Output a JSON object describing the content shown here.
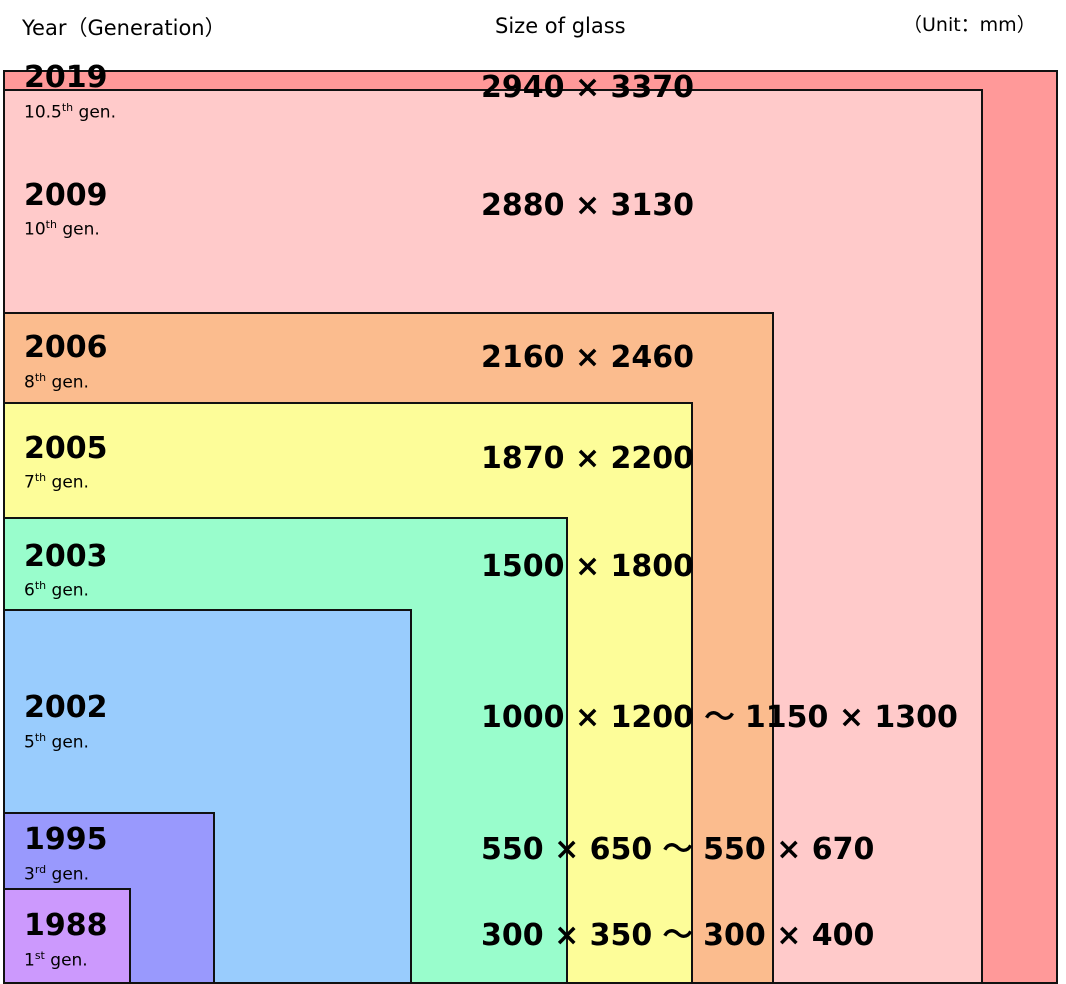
{
  "header": {
    "year_col": "Year（Generation）",
    "size_col": "Size of glass",
    "unit": "（Unit：mm）"
  },
  "generations": [
    {
      "year": "2019",
      "gen_num": "10.5",
      "gen_suffix": "th",
      "gen_word": " gen.",
      "size": "2940 × 3370",
      "color": "#ff9999"
    },
    {
      "year": "2009",
      "gen_num": "10",
      "gen_suffix": "th",
      "gen_word": " gen.",
      "size": "2880 × 3130",
      "color": "#ffcaca"
    },
    {
      "year": "2006",
      "gen_num": "8",
      "gen_suffix": "th",
      "gen_word": " gen.",
      "size": "2160 × 2460",
      "color": "#fbbc8e"
    },
    {
      "year": "2005",
      "gen_num": "7",
      "gen_suffix": "th",
      "gen_word": " gen.",
      "size": "1870 × 2200",
      "color": "#fdfd99"
    },
    {
      "year": "2003",
      "gen_num": "6",
      "gen_suffix": "th",
      "gen_word": " gen.",
      "size": "1500 × 1800",
      "color": "#99fdcc"
    },
    {
      "year": "2002",
      "gen_num": "5",
      "gen_suffix": "th",
      "gen_word": " gen.",
      "size": "1000 × 1200 ～ 1150 × 1300",
      "color": "#99ccfd"
    },
    {
      "year": "1995",
      "gen_num": "3",
      "gen_suffix": "rd",
      "gen_word": " gen.",
      "size": "550 × 650 ～ 550 × 670",
      "color": "#9999fd"
    },
    {
      "year": "1988",
      "gen_num": "1",
      "gen_suffix": "st",
      "gen_word": " gen.",
      "size": "300 × 350 ～ 300 × 400",
      "color": "#cc99fd"
    }
  ]
}
